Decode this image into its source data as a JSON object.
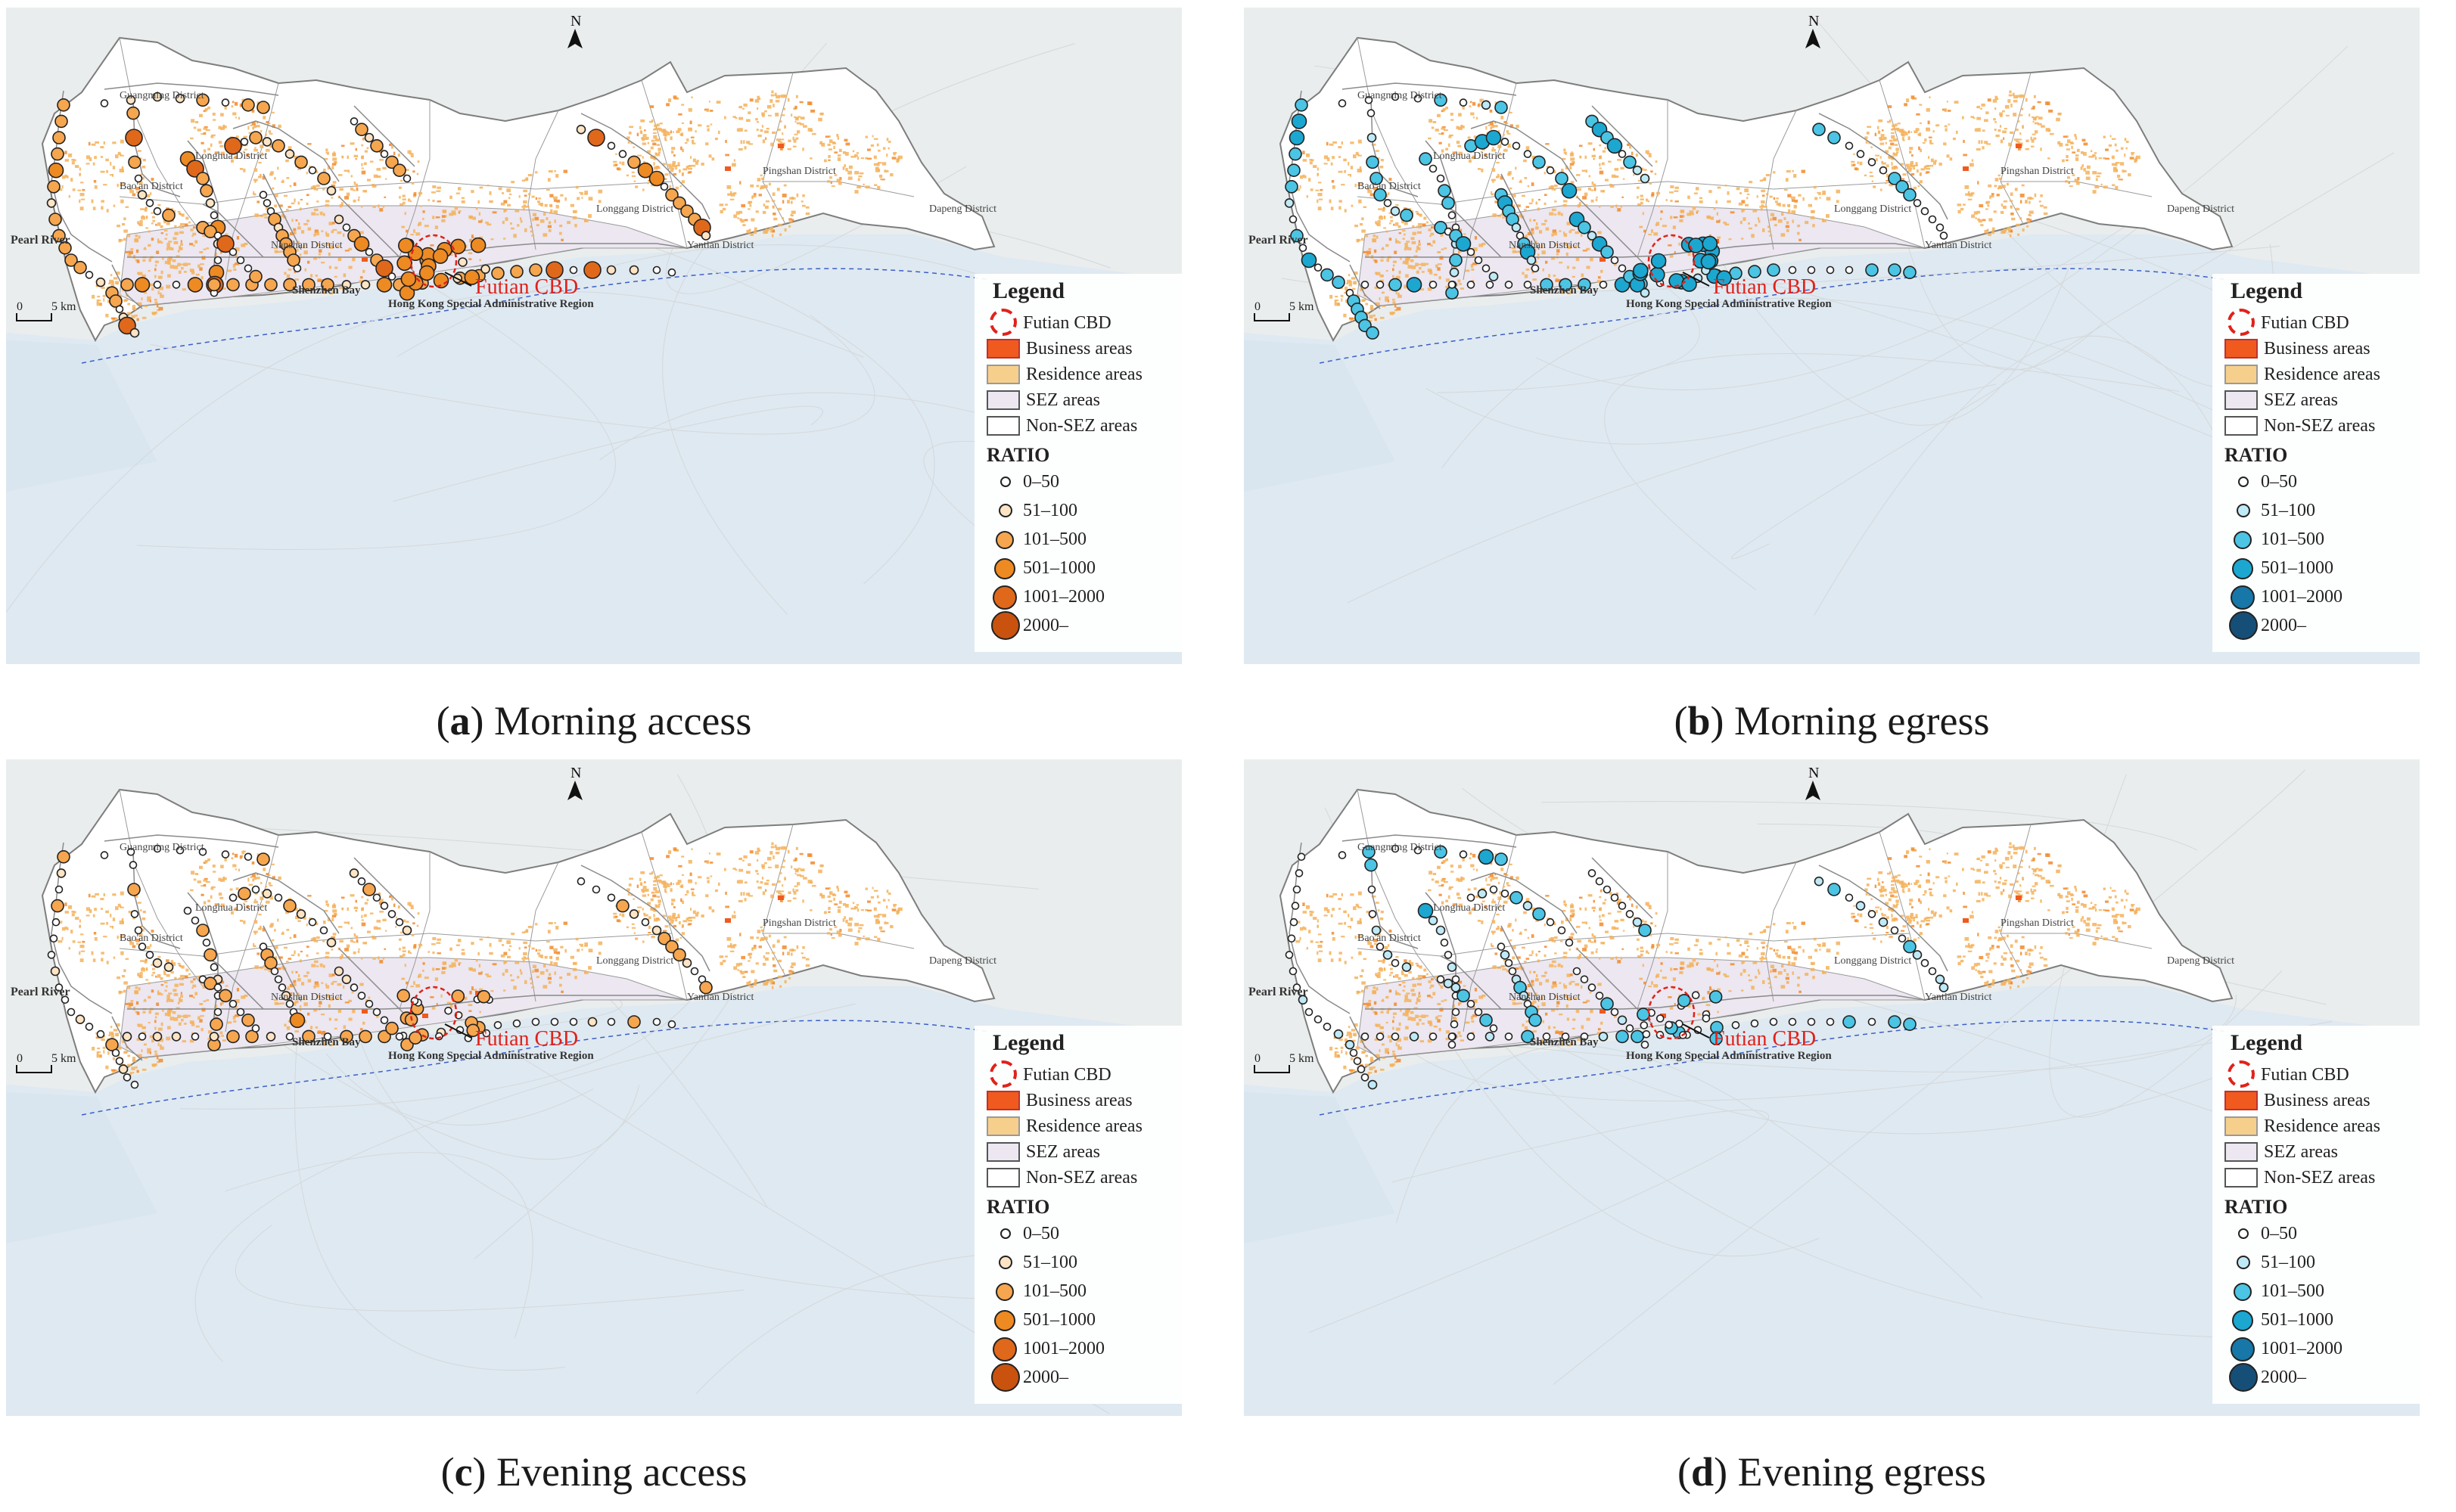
{
  "panels": [
    {
      "id": "a",
      "letter": "a",
      "title": "Morning access",
      "theme": "orange"
    },
    {
      "id": "b",
      "letter": "b",
      "title": "Morning egress",
      "theme": "blue"
    },
    {
      "id": "c",
      "letter": "c",
      "title": "Evening access",
      "theme": "orange"
    },
    {
      "id": "d",
      "letter": "d",
      "title": "Evening egress",
      "theme": "blue"
    }
  ],
  "map_labels": {
    "districts": [
      "Guangming District",
      "Longhua District",
      "Bao'an District",
      "Longgang District",
      "Pingshan District",
      "Dapeng District",
      "Yantian District",
      "Nanshan District"
    ],
    "pearl_river": "Pearl River",
    "shenzhen_bay": "Shenzhen Bay",
    "hong_kong": "Hong Kong Special Administrative Region",
    "cbd_callout": "Futian CBD",
    "scale_zero": "0",
    "scale_label": "5 km",
    "north": "N"
  },
  "legend": {
    "title": "Legend",
    "items": [
      "Futian CBD",
      "Business areas",
      "Residence areas",
      "SEZ areas",
      "Non-SEZ areas"
    ],
    "ratio_title": "RATIO",
    "ratio_classes": [
      "0–50",
      "51–100",
      "101–500",
      "501–1000",
      "1001–2000",
      "2000–"
    ]
  },
  "colors": {
    "orange_scale": [
      "#ffffff",
      "#fde4c4",
      "#f6a64e",
      "#ee8a22",
      "#e0681b",
      "#c9520e"
    ],
    "blue_scale": [
      "#ffffff",
      "#bfe9f5",
      "#4cc4e4",
      "#1ca7d1",
      "#1677a8",
      "#154f78"
    ],
    "business": "#f05a1e",
    "residence": "#f7cf8c",
    "sez": "#ece7f0",
    "non_sez": "#ffffff",
    "cbd_circle": "#e0221b"
  }
}
